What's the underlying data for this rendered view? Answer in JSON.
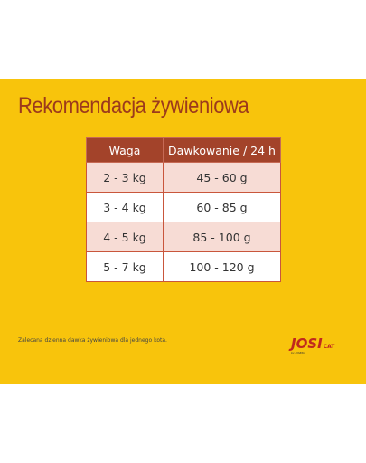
{
  "title": "Rekomendacja żywieniowa",
  "table": {
    "header": [
      "Waga",
      "Dawkowanie / 24 h"
    ],
    "rows": [
      [
        "2 - 3 kg",
        "45 - 60 g"
      ],
      [
        "3 - 4 kg",
        "60 - 85 g"
      ],
      [
        "4 - 5 kg",
        "85 - 100 g"
      ],
      [
        "5 - 7 kg",
        "100 - 120 g"
      ]
    ]
  },
  "footnote": "Zalecana dzienna dawka żywieniowa dla jednego kota.",
  "logo": {
    "name": "JOSI",
    "sub": "CAT",
    "by": "by JOSERA"
  }
}
